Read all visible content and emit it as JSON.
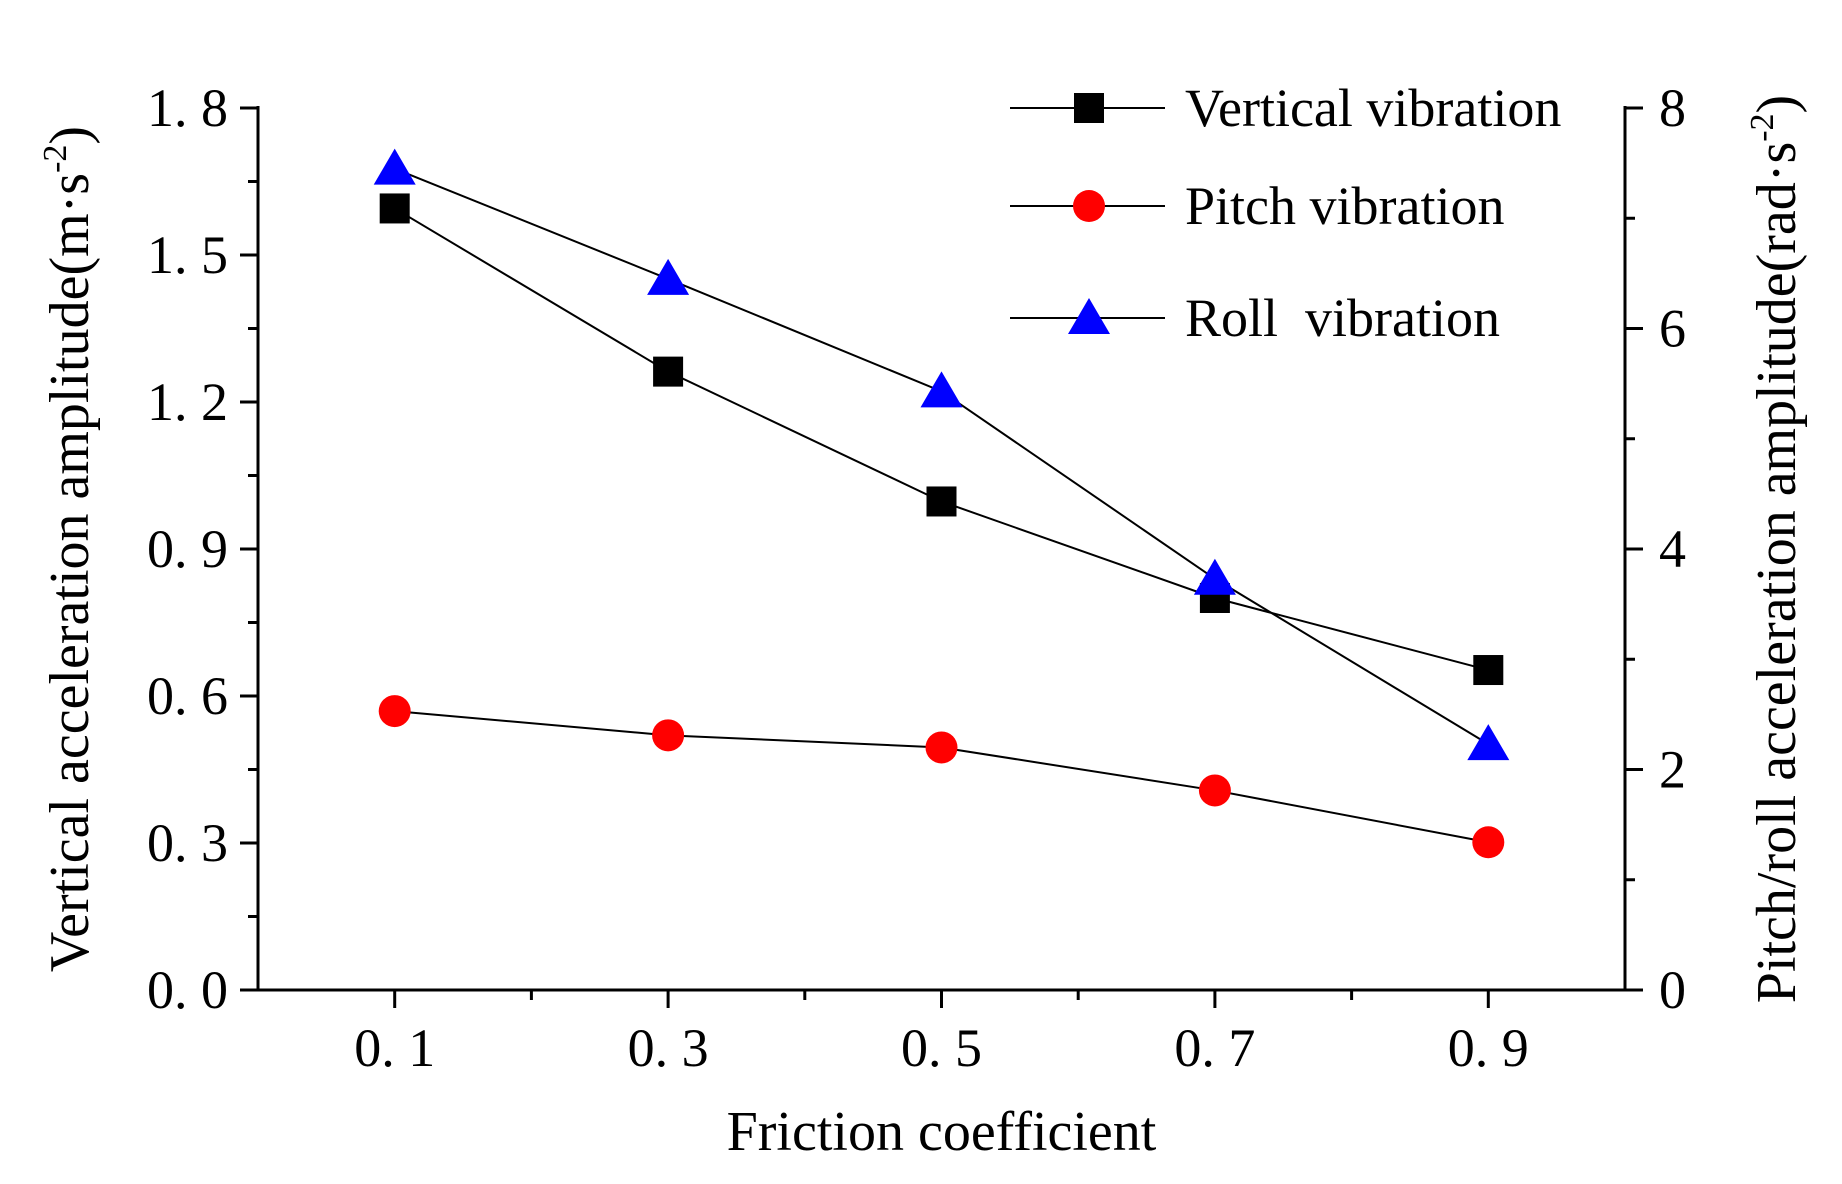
{
  "chart_data": {
    "type": "line",
    "title": "",
    "x": [
      0.1,
      0.3,
      0.5,
      0.7,
      0.9
    ],
    "x_tick_labels": [
      "0. 1",
      "0. 3",
      "0. 5",
      "0. 7",
      "0. 9"
    ],
    "xlabel": "Friction coefficient",
    "xlim": [
      0.0,
      1.0
    ],
    "ylabel_left": "Vertical acceleration amplitude(m·s",
    "ylabel_left_sup": "-2",
    "ylabel_left_close": ")",
    "ylim_left": [
      0.0,
      1.8
    ],
    "y_left_ticks": [
      0.0,
      0.3,
      0.6,
      0.9,
      1.2,
      1.5,
      1.8
    ],
    "y_left_tick_labels": [
      "0. 0",
      "0. 3",
      "0. 6",
      "0. 9",
      "1. 2",
      "1. 5",
      "1. 8"
    ],
    "ylabel_right": "Pitch/roll acceleration amplitude(rad·s",
    "ylabel_right_sup": "-2",
    "ylabel_right_close": ")",
    "ylim_right": [
      0,
      8
    ],
    "y_right_ticks": [
      0,
      2,
      4,
      6,
      8
    ],
    "y_right_tick_labels": [
      "0",
      "2",
      "4",
      "6",
      "8"
    ],
    "legend_position": "top-right",
    "series": [
      {
        "name": "Vertical vibration",
        "axis": "left",
        "marker": "square",
        "color": "#000000",
        "values": [
          1.595,
          1.262,
          0.997,
          0.8,
          0.653
        ]
      },
      {
        "name": "Pitch vibration",
        "axis": "right",
        "marker": "circle",
        "color": "#ff0000",
        "values": [
          2.53,
          2.31,
          2.2,
          1.81,
          1.34
        ]
      },
      {
        "name": "Roll  vibration",
        "axis": "right",
        "marker": "triangle",
        "color": "#0000ff",
        "values": [
          7.45,
          6.45,
          5.43,
          3.73,
          2.23
        ]
      }
    ]
  }
}
